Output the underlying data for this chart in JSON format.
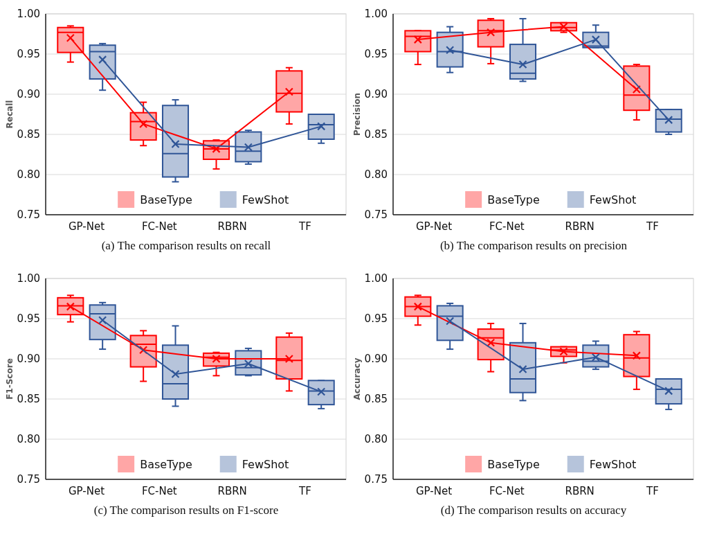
{
  "chart_data": [
    {
      "type": "box",
      "ylabel": "Recall",
      "annotations": [
        "(a) The comparison results on recall"
      ],
      "categories": [
        "GP-Net",
        "FC-Net",
        "RBRN",
        "TF"
      ],
      "ylim": [
        0.75,
        1
      ],
      "yticks": [
        {
          "value": 0.75,
          "label": "0.75"
        },
        {
          "value": 0.8,
          "label": "0.80"
        },
        {
          "value": 0.85,
          "label": "0.85"
        },
        {
          "value": 0.9,
          "label": "0.90"
        },
        {
          "value": 0.95,
          "label": "0.95"
        },
        {
          "value": 1,
          "label": "1.00"
        }
      ],
      "grid": "y",
      "legend": "bottom",
      "marker": "cross",
      "line_style": "solid",
      "series": [
        {
          "name": "BaseType",
          "color": "#ff0000",
          "boxes": [
            {
              "low": 0.94,
              "q1": 0.952,
              "median": 0.977,
              "q3": 0.983,
              "high": 0.985
            },
            {
              "low": 0.836,
              "q1": 0.843,
              "median": 0.866,
              "q3": 0.877,
              "high": 0.89
            },
            {
              "low": 0.807,
              "q1": 0.819,
              "median": 0.832,
              "q3": 0.842,
              "high": 0.843
            },
            {
              "low": 0.863,
              "q1": 0.878,
              "median": 0.901,
              "q3": 0.929,
              "high": 0.933
            }
          ]
        },
        {
          "name": "FewShot",
          "color": "#2f5597",
          "boxes": [
            {
              "low": 0.905,
              "q1": 0.919,
              "median": 0.953,
              "q3": 0.961,
              "high": 0.963
            },
            {
              "low": 0.791,
              "q1": 0.797,
              "median": 0.826,
              "q3": 0.886,
              "high": 0.893
            },
            {
              "low": 0.813,
              "q1": 0.816,
              "median": 0.829,
              "q3": 0.853,
              "high": 0.855
            },
            {
              "low": 0.839,
              "q1": 0.844,
              "median": 0.862,
              "q3": 0.875,
              "high": 0.875
            }
          ]
        },
        {
          "type": "line",
          "color": "#ff0000",
          "values": [
            0.97,
            0.863,
            0.832,
            0.903
          ]
        },
        {
          "type": "line",
          "color": "#2f5597",
          "values": [
            0.943,
            0.838,
            0.834,
            0.86
          ]
        }
      ]
    },
    {
      "type": "box",
      "ylabel": "Precision",
      "annotations": [
        "(b) The comparison results on precision"
      ],
      "categories": [
        "GP-Net",
        "FC-Net",
        "RBRN",
        "TF"
      ],
      "ylim": [
        0.75,
        1
      ],
      "yticks": [
        {
          "value": 0.75,
          "label": "0.75"
        },
        {
          "value": 0.8,
          "label": "0.80"
        },
        {
          "value": 0.85,
          "label": "0.85"
        },
        {
          "value": 0.9,
          "label": "0.90"
        },
        {
          "value": 0.95,
          "label": "0.95"
        },
        {
          "value": 1,
          "label": "1.00"
        }
      ],
      "grid": "y",
      "legend": "bottom",
      "marker": "cross",
      "line_style": "solid",
      "series": [
        {
          "name": "BaseType",
          "color": "#ff0000",
          "boxes": [
            {
              "low": 0.937,
              "q1": 0.953,
              "median": 0.972,
              "q3": 0.979,
              "high": 0.979
            },
            {
              "low": 0.938,
              "q1": 0.959,
              "median": 0.979,
              "q3": 0.992,
              "high": 0.994
            },
            {
              "low": 0.977,
              "q1": 0.979,
              "median": 0.983,
              "q3": 0.989,
              "high": 0.989
            },
            {
              "low": 0.868,
              "q1": 0.88,
              "median": 0.899,
              "q3": 0.935,
              "high": 0.937
            }
          ]
        },
        {
          "name": "FewShot",
          "color": "#2f5597",
          "boxes": [
            {
              "low": 0.927,
              "q1": 0.934,
              "median": 0.953,
              "q3": 0.977,
              "high": 0.984
            },
            {
              "low": 0.916,
              "q1": 0.919,
              "median": 0.926,
              "q3": 0.962,
              "high": 0.994
            },
            {
              "low": 0.958,
              "q1": 0.958,
              "median": 0.96,
              "q3": 0.977,
              "high": 0.986
            },
            {
              "low": 0.85,
              "q1": 0.853,
              "median": 0.869,
              "q3": 0.881,
              "high": 0.881
            }
          ]
        },
        {
          "type": "line",
          "color": "#ff0000",
          "values": [
            0.968,
            0.977,
            0.984,
            0.906
          ]
        },
        {
          "type": "line",
          "color": "#2f5597",
          "values": [
            0.955,
            0.937,
            0.968,
            0.868
          ]
        }
      ]
    },
    {
      "type": "box",
      "ylabel": "F1-Score",
      "annotations": [
        "(c) The comparison results on F1-score"
      ],
      "categories": [
        "GP-Net",
        "FC-Net",
        "RBRN",
        "TF"
      ],
      "ylim": [
        0.75,
        1
      ],
      "yticks": [
        {
          "value": 0.75,
          "label": "0.75"
        },
        {
          "value": 0.8,
          "label": "0.80"
        },
        {
          "value": 0.85,
          "label": "0.85"
        },
        {
          "value": 0.9,
          "label": "0.90"
        },
        {
          "value": 0.95,
          "label": "0.95"
        },
        {
          "value": 1,
          "label": "1.00"
        }
      ],
      "grid": "y",
      "legend": "bottom",
      "marker": "cross",
      "line_style": "solid",
      "series": [
        {
          "name": "BaseType",
          "color": "#ff0000",
          "boxes": [
            {
              "low": 0.946,
              "q1": 0.955,
              "median": 0.966,
              "q3": 0.976,
              "high": 0.979
            },
            {
              "low": 0.872,
              "q1": 0.89,
              "median": 0.918,
              "q3": 0.929,
              "high": 0.935
            },
            {
              "low": 0.879,
              "q1": 0.891,
              "median": 0.902,
              "q3": 0.907,
              "high": 0.908
            },
            {
              "low": 0.86,
              "q1": 0.875,
              "median": 0.898,
              "q3": 0.927,
              "high": 0.932
            }
          ]
        },
        {
          "name": "FewShot",
          "color": "#2f5597",
          "boxes": [
            {
              "low": 0.912,
              "q1": 0.924,
              "median": 0.956,
              "q3": 0.967,
              "high": 0.97
            },
            {
              "low": 0.841,
              "q1": 0.85,
              "median": 0.869,
              "q3": 0.917,
              "high": 0.941
            },
            {
              "low": 0.879,
              "q1": 0.88,
              "median": 0.889,
              "q3": 0.91,
              "high": 0.913
            },
            {
              "low": 0.838,
              "q1": 0.843,
              "median": 0.86,
              "q3": 0.873,
              "high": 0.873
            }
          ]
        },
        {
          "type": "line",
          "color": "#ff0000",
          "values": [
            0.965,
            0.911,
            0.9,
            0.9
          ]
        },
        {
          "type": "line",
          "color": "#2f5597",
          "values": [
            0.948,
            0.881,
            0.894,
            0.859
          ]
        }
      ]
    },
    {
      "type": "box",
      "ylabel": "Accuracy",
      "annotations": [
        "(d) The comparison results on accuracy"
      ],
      "categories": [
        "GP-Net",
        "FC-Net",
        "RBRN",
        "TF"
      ],
      "ylim": [
        0.75,
        1
      ],
      "yticks": [
        {
          "value": 0.75,
          "label": "0.75"
        },
        {
          "value": 0.8,
          "label": "0.80"
        },
        {
          "value": 0.85,
          "label": "0.85"
        },
        {
          "value": 0.9,
          "label": "0.90"
        },
        {
          "value": 0.95,
          "label": "0.95"
        },
        {
          "value": 1,
          "label": "1.00"
        }
      ],
      "grid": "y",
      "legend": "bottom",
      "marker": "cross",
      "line_style": "solid",
      "series": [
        {
          "name": "BaseType",
          "color": "#ff0000",
          "boxes": [
            {
              "low": 0.942,
              "q1": 0.953,
              "median": 0.965,
              "q3": 0.977,
              "high": 0.979
            },
            {
              "low": 0.884,
              "q1": 0.899,
              "median": 0.926,
              "q3": 0.937,
              "high": 0.944
            },
            {
              "low": 0.895,
              "q1": 0.903,
              "median": 0.911,
              "q3": 0.915,
              "high": 0.915
            },
            {
              "low": 0.862,
              "q1": 0.878,
              "median": 0.901,
              "q3": 0.93,
              "high": 0.934
            }
          ]
        },
        {
          "name": "FewShot",
          "color": "#2f5597",
          "boxes": [
            {
              "low": 0.912,
              "q1": 0.923,
              "median": 0.953,
              "q3": 0.966,
              "high": 0.969
            },
            {
              "low": 0.848,
              "q1": 0.858,
              "median": 0.875,
              "q3": 0.92,
              "high": 0.944
            },
            {
              "low": 0.887,
              "q1": 0.89,
              "median": 0.897,
              "q3": 0.917,
              "high": 0.922
            },
            {
              "low": 0.837,
              "q1": 0.844,
              "median": 0.862,
              "q3": 0.875,
              "high": 0.875
            }
          ]
        },
        {
          "type": "line",
          "color": "#ff0000",
          "values": [
            0.965,
            0.92,
            0.909,
            0.904
          ]
        },
        {
          "type": "line",
          "color": "#2f5597",
          "values": [
            0.947,
            0.887,
            0.902,
            0.86
          ]
        }
      ]
    }
  ]
}
